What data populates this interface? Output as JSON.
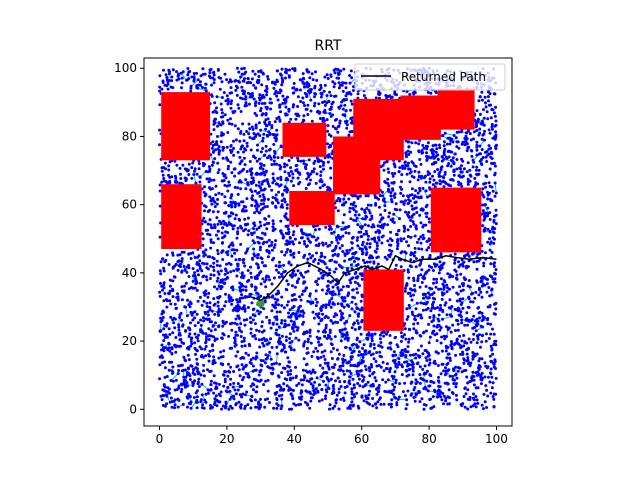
{
  "chart_data": {
    "type": "scatter",
    "title": "RRT",
    "xlabel": "",
    "ylabel": "",
    "xlim": [
      -4.6,
      104.6
    ],
    "ylim": [
      -4.9,
      103.0
    ],
    "xticks": [
      0,
      20,
      40,
      60,
      80,
      100
    ],
    "yticks": [
      0,
      20,
      40,
      60,
      80,
      100
    ],
    "grid": false,
    "legend": {
      "placement": "top-right",
      "entries": [
        "Returned Path"
      ]
    },
    "colors": {
      "obstacle": "#ff0000",
      "sample_node": "#0000ff",
      "tree_edge": "#00bfbf",
      "path": "#000000",
      "start": "#2ca02c"
    },
    "obstacles": [
      {
        "x0": 0.5,
        "y0": 73,
        "x1": 15,
        "y1": 93
      },
      {
        "x0": 0.5,
        "y0": 47,
        "x1": 12.5,
        "y1": 66
      },
      {
        "x0": 36.5,
        "y0": 74,
        "x1": 49.5,
        "y1": 84
      },
      {
        "x0": 38.5,
        "y0": 54,
        "x1": 52,
        "y1": 64
      },
      {
        "x0": 51.5,
        "y0": 63,
        "x1": 65.5,
        "y1": 80
      },
      {
        "x0": 57.5,
        "y0": 73,
        "x1": 72.5,
        "y1": 91
      },
      {
        "x0": 71.5,
        "y0": 79,
        "x1": 83.5,
        "y1": 92
      },
      {
        "x0": 82.5,
        "y0": 82,
        "x1": 93.5,
        "y1": 94
      },
      {
        "x0": 80.5,
        "y0": 46,
        "x1": 95.5,
        "y1": 65
      },
      {
        "x0": 60.5,
        "y0": 23,
        "x1": 72.5,
        "y1": 41
      }
    ],
    "sample_region": {
      "xmin": 0,
      "xmax": 100,
      "ymin": 0,
      "ymax": 100,
      "approx_count": 5000
    },
    "start": {
      "x": 30,
      "y": 31
    },
    "series": [
      {
        "name": "Returned Path",
        "x": [
          27,
          30,
          32,
          35,
          38,
          41,
          44,
          46,
          48,
          51,
          53,
          55,
          58,
          61,
          63,
          66,
          68,
          70,
          72,
          75,
          78,
          82,
          85,
          88,
          92,
          96,
          100
        ],
        "y": [
          33,
          32,
          33,
          36,
          40,
          42,
          43,
          42,
          41,
          39,
          37,
          40,
          41,
          42,
          41,
          42,
          41,
          45,
          44,
          43,
          44,
          44,
          45,
          44.5,
          44,
          44.5,
          44
        ]
      }
    ]
  }
}
